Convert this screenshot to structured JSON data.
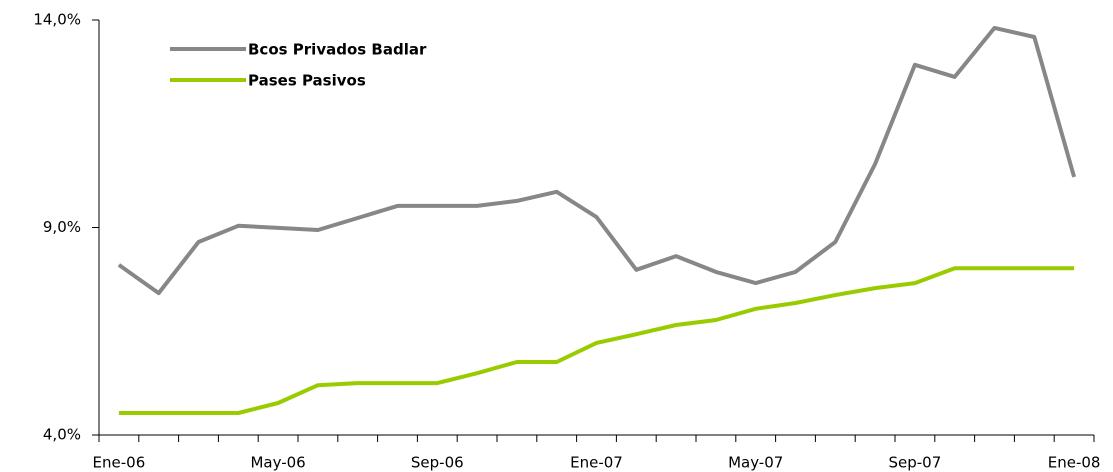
{
  "chart_data": {
    "type": "line",
    "categories": [
      "Ene-06",
      null,
      null,
      null,
      "May-06",
      null,
      null,
      null,
      "Sep-06",
      null,
      null,
      null,
      "Ene-07",
      null,
      null,
      null,
      "May-07",
      null,
      null,
      null,
      "Sep-07",
      null,
      null,
      null,
      "Ene-08"
    ],
    "series": [
      {
        "name": "Bcos Privados Badlar",
        "color": "#878787",
        "values": [
          8.1,
          7.42,
          8.65,
          9.04,
          8.99,
          8.94,
          9.23,
          9.52,
          9.52,
          9.52,
          9.64,
          9.86,
          9.25,
          7.98,
          8.31,
          7.93,
          7.66,
          7.93,
          8.65,
          10.53,
          12.92,
          12.63,
          13.81,
          13.59,
          10.22
        ]
      },
      {
        "name": "Pases Pasivos",
        "color": "#99cc00",
        "values": [
          4.53,
          4.53,
          4.53,
          4.53,
          4.77,
          5.2,
          5.25,
          5.25,
          5.25,
          5.49,
          5.76,
          5.76,
          6.22,
          6.43,
          6.65,
          6.77,
          7.04,
          7.18,
          7.37,
          7.54,
          7.66,
          8.02,
          8.02,
          8.02,
          8.02
        ]
      }
    ],
    "ylim": [
      4,
      14
    ],
    "yticks": [
      {
        "value": 4,
        "label": "4,0%"
      },
      {
        "value": 9,
        "label": "9,0%"
      },
      {
        "value": 14,
        "label": "14,0%"
      }
    ],
    "legend": "upper left"
  }
}
